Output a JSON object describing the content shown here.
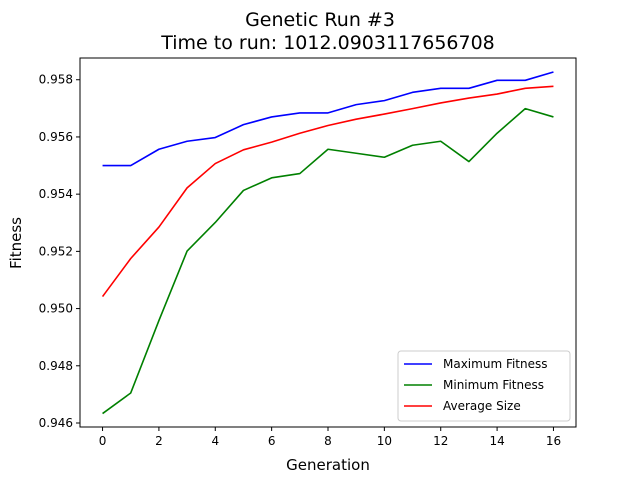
{
  "chart_data": {
    "type": "line",
    "title": "Genetic Run #3",
    "subtitle": "Time to run: 1012.0903117656708",
    "xlabel": "Generation",
    "ylabel": "Fitness",
    "x": [
      0,
      1,
      2,
      3,
      4,
      5,
      6,
      7,
      8,
      9,
      10,
      11,
      12,
      13,
      14,
      15,
      16
    ],
    "xlim": [
      -0.8,
      16.8
    ],
    "ylim": [
      0.94586,
      0.95876
    ],
    "x_ticks": [
      "0",
      "2",
      "4",
      "6",
      "8",
      "10",
      "12",
      "14",
      "16"
    ],
    "x_tick_values": [
      0,
      2,
      4,
      6,
      8,
      10,
      12,
      14,
      16
    ],
    "y_ticks": [
      "0.946",
      "0.948",
      "0.950",
      "0.952",
      "0.954",
      "0.956",
      "0.958"
    ],
    "y_tick_values": [
      0.946,
      0.948,
      0.95,
      0.952,
      0.954,
      0.956,
      0.958
    ],
    "grid": false,
    "legend_position": "lower-right",
    "series": [
      {
        "name": "Maximum Fitness",
        "color": "#0000ff",
        "values": [
          0.955,
          0.955,
          0.95557,
          0.95585,
          0.95598,
          0.95643,
          0.9567,
          0.95684,
          0.95684,
          0.95713,
          0.95727,
          0.95756,
          0.9577,
          0.9577,
          0.95798,
          0.95798,
          0.95827
        ]
      },
      {
        "name": "Minimum Fitness",
        "color": "#008000",
        "values": [
          0.94633,
          0.94705,
          0.94958,
          0.95201,
          0.95301,
          0.95413,
          0.95457,
          0.95472,
          0.95557,
          0.95543,
          0.95529,
          0.95571,
          0.95585,
          0.95514,
          0.95613,
          0.95699,
          0.9567
        ]
      },
      {
        "name": "Average Size",
        "color": "#ff0000",
        "values": [
          0.95042,
          0.95175,
          0.95285,
          0.95422,
          0.95507,
          0.95555,
          0.95582,
          0.95613,
          0.9564,
          0.95662,
          0.9568,
          0.95699,
          0.95719,
          0.95736,
          0.9575,
          0.9577,
          0.95777
        ]
      }
    ]
  }
}
